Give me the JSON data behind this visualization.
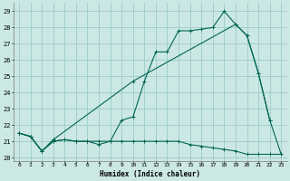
{
  "title": "",
  "xlabel": "Humidex (Indice chaleur)",
  "bg_color": "#cce8e4",
  "line_color": "#006655",
  "grid_color": "#99cccc",
  "xlim": [
    -0.5,
    23.5
  ],
  "ylim": [
    19.8,
    29.5
  ],
  "xticks": [
    0,
    1,
    2,
    3,
    4,
    5,
    6,
    7,
    8,
    9,
    10,
    11,
    12,
    13,
    14,
    15,
    16,
    17,
    18,
    19,
    20,
    21,
    22,
    23
  ],
  "yticks": [
    20,
    21,
    22,
    23,
    24,
    25,
    26,
    27,
    28,
    29
  ],
  "line1_x": [
    0,
    1,
    2,
    3,
    4,
    5,
    6,
    7,
    8,
    9,
    10,
    11,
    12,
    13,
    14,
    15,
    16,
    17,
    18,
    19,
    20,
    21,
    22,
    23
  ],
  "line1_y": [
    21.5,
    21.3,
    20.4,
    21.0,
    21.1,
    21.0,
    21.0,
    20.8,
    21.0,
    21.0,
    21.0,
    21.0,
    21.0,
    21.0,
    21.0,
    20.8,
    20.7,
    20.6,
    20.5,
    20.4,
    20.2,
    20.2,
    20.2,
    20.2
  ],
  "line2_x": [
    0,
    1,
    2,
    3,
    4,
    5,
    6,
    7,
    8,
    9,
    10,
    11,
    12,
    13,
    14,
    15,
    16,
    17,
    18,
    19,
    20,
    21,
    22
  ],
  "line2_y": [
    21.5,
    21.3,
    20.4,
    21.0,
    21.1,
    21.0,
    21.0,
    21.0,
    21.0,
    22.3,
    22.5,
    24.7,
    26.5,
    26.5,
    27.8,
    27.8,
    27.9,
    28.0,
    29.0,
    28.2,
    27.5,
    25.2,
    22.3
  ],
  "line3_x": [
    0,
    1,
    2,
    3,
    10,
    19,
    20,
    21,
    22,
    23
  ],
  "line3_y": [
    21.5,
    21.3,
    20.4,
    21.1,
    24.7,
    28.2,
    27.5,
    25.2,
    22.3,
    20.2
  ]
}
